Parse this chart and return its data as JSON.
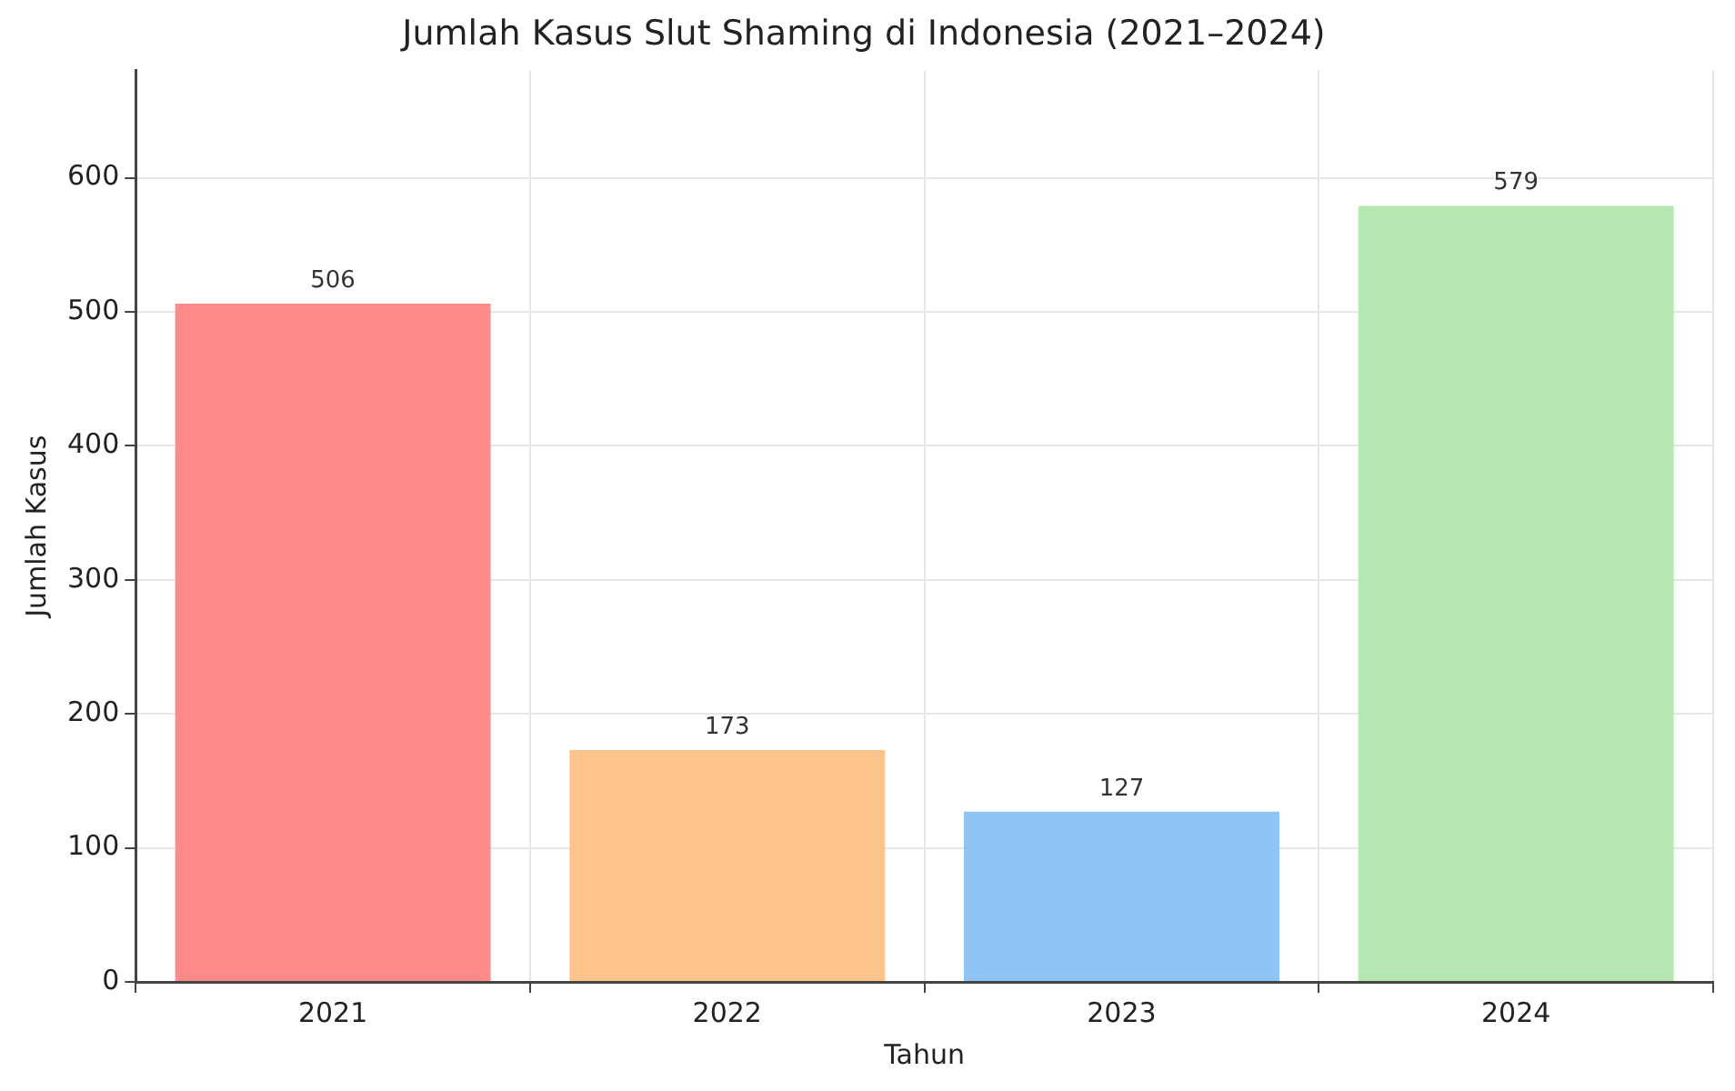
{
  "chart_data": {
    "type": "bar",
    "title": "Jumlah Kasus Slut Shaming di Indonesia (2021–2024)",
    "xlabel": "Tahun",
    "ylabel": "Jumlah Kasus",
    "categories": [
      "2021",
      "2022",
      "2023",
      "2024"
    ],
    "values": [
      506,
      173,
      127,
      579
    ],
    "colors": [
      "#ff8a8a",
      "#ffc48c",
      "#8ec5f5",
      "#b5e8b0"
    ],
    "ylim": [
      0,
      680
    ],
    "yticks": [
      0,
      100,
      200,
      300,
      400,
      500,
      600
    ],
    "grid": true,
    "data_labels": true
  }
}
